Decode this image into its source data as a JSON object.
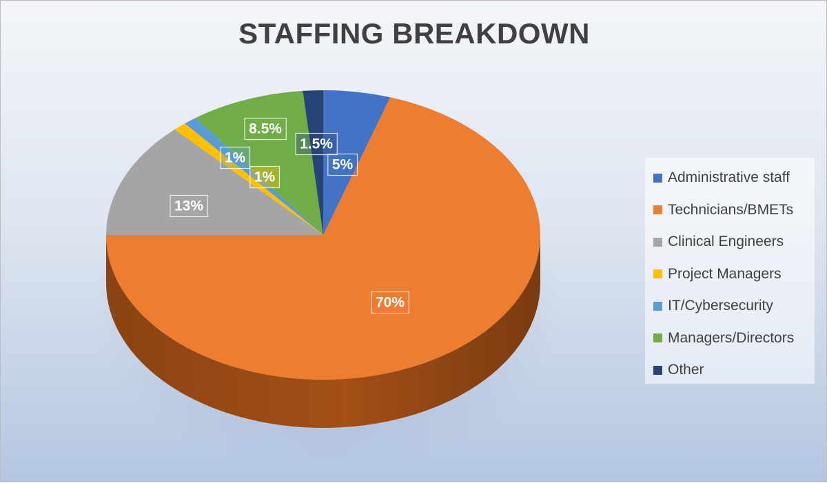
{
  "chart_data": {
    "type": "pie",
    "title": "STAFFING BREAKDOWN",
    "legend_position": "right",
    "three_d": true,
    "slices": [
      {
        "name": "Administrative staff",
        "value": 5,
        "label": "5%",
        "color": "#4472C4",
        "side_color": "#2F5597"
      },
      {
        "name": "Technicians/BMETs",
        "value": 70,
        "label": "70%",
        "color": "#ED7D31",
        "side_color": "#A34F16"
      },
      {
        "name": "Clinical Engineers",
        "value": 13,
        "label": "13%",
        "color": "#A5A5A5",
        "side_color": "#6E6E6E"
      },
      {
        "name": "Project Managers",
        "value": 1,
        "label": "1%",
        "color": "#FFC000",
        "side_color": "#BF8F00"
      },
      {
        "name": "IT/Cybersecurity",
        "value": 1,
        "label": "1%",
        "color": "#5B9BD5",
        "side_color": "#2E75B6"
      },
      {
        "name": "Managers/Directors",
        "value": 8.5,
        "label": "8.5%",
        "color": "#70AD47",
        "side_color": "#4E7A31"
      },
      {
        "name": "Other",
        "value": 1.5,
        "label": "1.5%",
        "color": "#264478",
        "side_color": "#172B4D"
      }
    ]
  }
}
